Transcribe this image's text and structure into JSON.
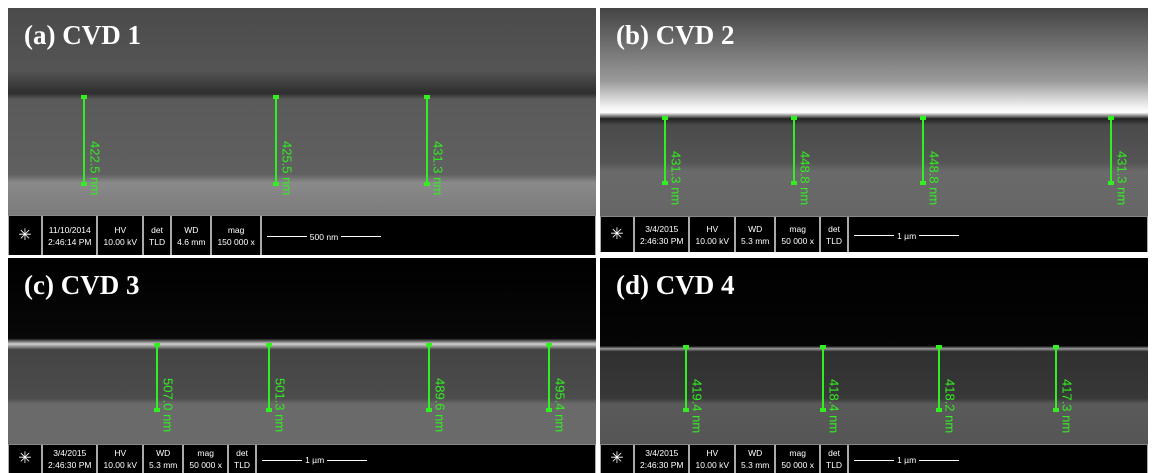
{
  "panels": [
    {
      "title": "(a) CVD 1",
      "measurements": [
        "422.5 nm",
        "425.5 nm",
        "431.3 nm"
      ],
      "info": {
        "date": "11/10/2014",
        "time": "2:46:14 PM",
        "fields": [
          {
            "label": "HV",
            "value": "10.00 kV"
          },
          {
            "label": "det",
            "value": "TLD"
          },
          {
            "label": "WD",
            "value": "4.6 mm"
          },
          {
            "label": "mag",
            "value": "150 000 x"
          }
        ],
        "scale": "500 nm"
      }
    },
    {
      "title": "(b) CVD 2",
      "measurements": [
        "431.3 nm",
        "448.8 nm",
        "448.8 nm",
        "431.3 nm"
      ],
      "info": {
        "date": "3/4/2015",
        "time": "2:46:30 PM",
        "fields": [
          {
            "label": "HV",
            "value": "10.00 kV"
          },
          {
            "label": "WD",
            "value": "5.3 mm"
          },
          {
            "label": "mag",
            "value": "50 000 x"
          },
          {
            "label": "det",
            "value": "TLD"
          }
        ],
        "scale": "1 µm"
      }
    },
    {
      "title": "(c) CVD 3",
      "measurements": [
        "507.0 nm",
        "501.3 nm",
        "489.6 nm",
        "495.4 nm"
      ],
      "info": {
        "date": "3/4/2015",
        "time": "2:46:30 PM",
        "fields": [
          {
            "label": "HV",
            "value": "10.00 kV"
          },
          {
            "label": "WD",
            "value": "5.3 mm"
          },
          {
            "label": "mag",
            "value": "50 000 x"
          },
          {
            "label": "det",
            "value": "TLD"
          }
        ],
        "scale": "1 µm"
      }
    },
    {
      "title": "(d) CVD 4",
      "measurements": [
        "419.4 nm",
        "418.4 nm",
        "418.2 nm",
        "417.3 nm"
      ],
      "info": {
        "date": "3/4/2015",
        "time": "2:46:30 PM",
        "fields": [
          {
            "label": "HV",
            "value": "10.00 kV"
          },
          {
            "label": "WD",
            "value": "5.3 mm"
          },
          {
            "label": "mag",
            "value": "50 000 x"
          },
          {
            "label": "det",
            "value": "TLD"
          }
        ],
        "scale": "1 µm"
      }
    }
  ]
}
